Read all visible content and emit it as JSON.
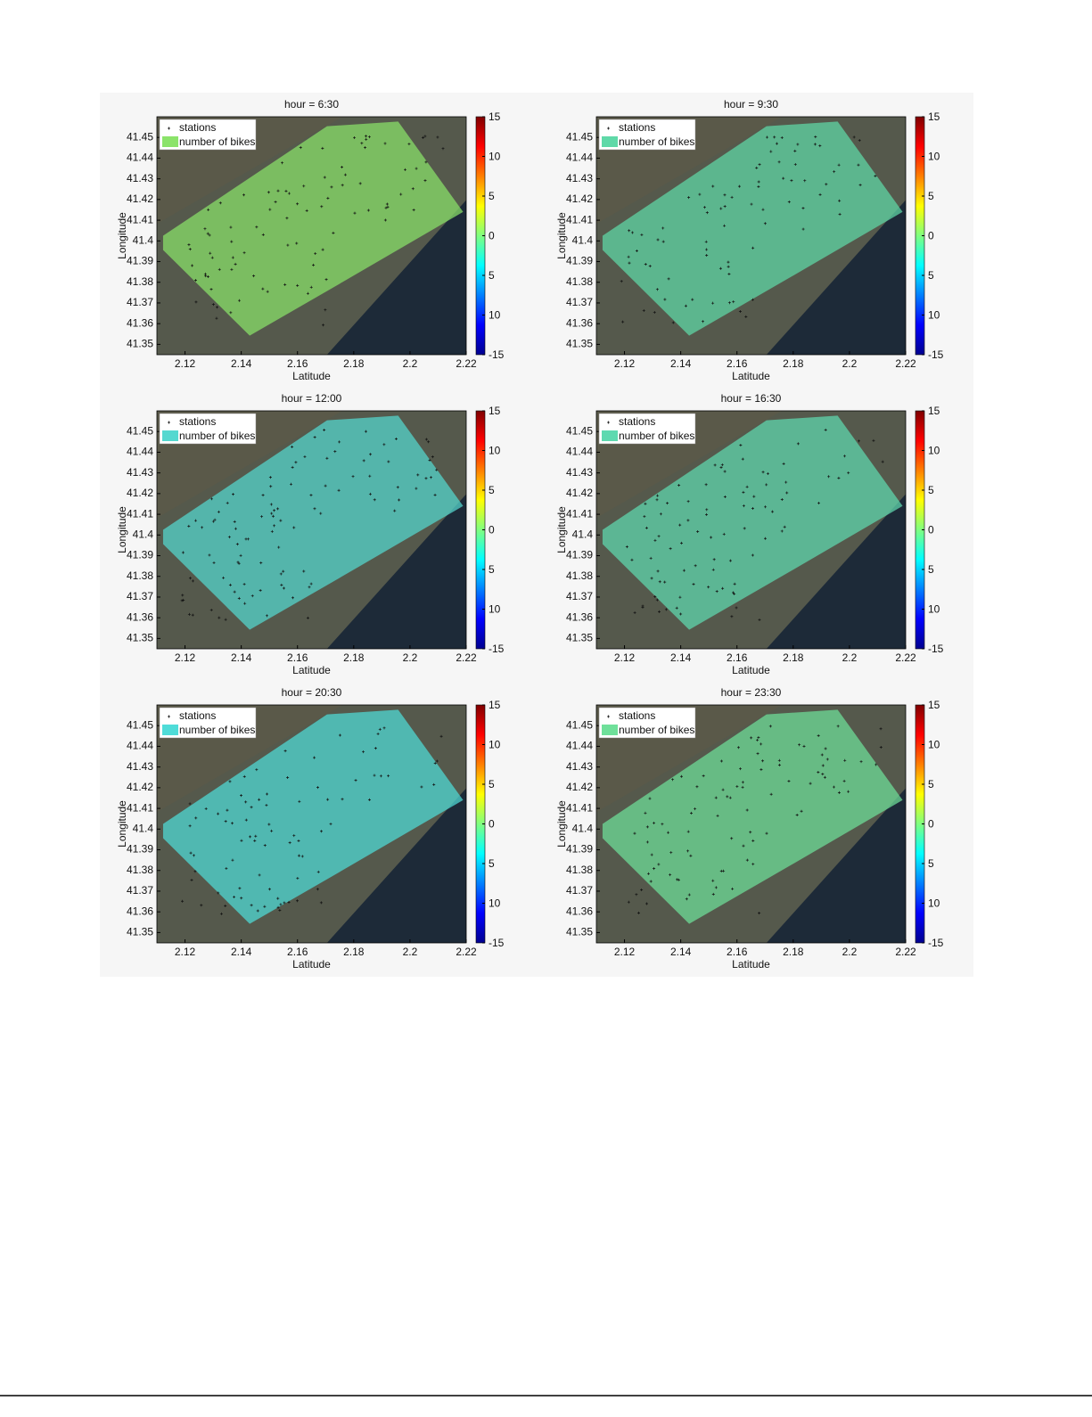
{
  "chart_data": [
    {
      "type": "heatmap",
      "title": "hour = 6:30",
      "xlabel": "Latitude",
      "ylabel": "Longitude",
      "xlim": [
        2.11,
        2.22
      ],
      "xticks": [
        2.12,
        2.14,
        2.16,
        2.18,
        2.2,
        2.22
      ],
      "ylim": [
        41.345,
        41.46
      ],
      "yticks": [
        41.35,
        41.36,
        41.37,
        41.38,
        41.39,
        41.4,
        41.41,
        41.42,
        41.43,
        41.44,
        41.45
      ],
      "clim": [
        -15,
        15
      ],
      "cticks": [
        -15,
        {
          "value": -10,
          "label": "10"
        },
        {
          "value": -5,
          "label": "5"
        },
        0,
        5,
        10,
        15
      ],
      "legend": [
        "stations",
        "number of bikes"
      ],
      "overlay_color": "#8be36a"
    },
    {
      "type": "heatmap",
      "title": "hour = 9:30",
      "xlabel": "Latitude",
      "ylabel": "Longitude",
      "xlim": [
        2.11,
        2.22
      ],
      "xticks": [
        2.12,
        2.14,
        2.16,
        2.18,
        2.2,
        2.22
      ],
      "ylim": [
        41.345,
        41.46
      ],
      "yticks": [
        41.35,
        41.36,
        41.37,
        41.38,
        41.39,
        41.4,
        41.41,
        41.42,
        41.43,
        41.44,
        41.45
      ],
      "clim": [
        -15,
        15
      ],
      "cticks": [
        -15,
        {
          "value": -10,
          "label": "10"
        },
        {
          "value": -5,
          "label": "5"
        },
        0,
        5,
        10,
        15
      ],
      "legend": [
        "stations",
        "number of bikes"
      ],
      "overlay_color": "#5fd9a8"
    },
    {
      "type": "heatmap",
      "title": "hour = 12:00",
      "xlabel": "Latitude",
      "ylabel": "Longitude",
      "xlim": [
        2.11,
        2.22
      ],
      "xticks": [
        2.12,
        2.14,
        2.16,
        2.18,
        2.2,
        2.22
      ],
      "ylim": [
        41.345,
        41.46
      ],
      "yticks": [
        41.35,
        41.36,
        41.37,
        41.38,
        41.39,
        41.4,
        41.41,
        41.42,
        41.43,
        41.44,
        41.45
      ],
      "clim": [
        -15,
        15
      ],
      "cticks": [
        -15,
        {
          "value": -10,
          "label": "10"
        },
        {
          "value": -5,
          "label": "5"
        },
        0,
        5,
        10,
        15
      ],
      "legend": [
        "stations",
        "number of bikes"
      ],
      "overlay_color": "#55d8d0"
    },
    {
      "type": "heatmap",
      "title": "hour = 16:30",
      "xlabel": "Latitude",
      "ylabel": "Longitude",
      "xlim": [
        2.11,
        2.22
      ],
      "xticks": [
        2.12,
        2.14,
        2.16,
        2.18,
        2.2,
        2.22
      ],
      "ylim": [
        41.345,
        41.46
      ],
      "yticks": [
        41.35,
        41.36,
        41.37,
        41.38,
        41.39,
        41.4,
        41.41,
        41.42,
        41.43,
        41.44,
        41.45
      ],
      "clim": [
        -15,
        15
      ],
      "cticks": [
        -15,
        {
          "value": -10,
          "label": "10"
        },
        {
          "value": -5,
          "label": "5"
        },
        0,
        5,
        10,
        15
      ],
      "legend": [
        "stations",
        "number of bikes"
      ],
      "overlay_color": "#5fd9b0"
    },
    {
      "type": "heatmap",
      "title": "hour = 20:30",
      "xlabel": "Latitude",
      "ylabel": "Longitude",
      "xlim": [
        2.11,
        2.22
      ],
      "xticks": [
        2.12,
        2.14,
        2.16,
        2.18,
        2.2,
        2.22
      ],
      "ylim": [
        41.345,
        41.46
      ],
      "yticks": [
        41.35,
        41.36,
        41.37,
        41.38,
        41.39,
        41.4,
        41.41,
        41.42,
        41.43,
        41.44,
        41.45
      ],
      "clim": [
        -15,
        15
      ],
      "cticks": [
        -15,
        {
          "value": -10,
          "label": "10"
        },
        {
          "value": -5,
          "label": "5"
        },
        0,
        5,
        10,
        15
      ],
      "legend": [
        "stations",
        "number of bikes"
      ],
      "overlay_color": "#4fdcd8"
    },
    {
      "type": "heatmap",
      "title": "hour = 23:30",
      "xlabel": "Latitude",
      "ylabel": "Longitude",
      "xlim": [
        2.11,
        2.22
      ],
      "xticks": [
        2.12,
        2.14,
        2.16,
        2.18,
        2.2,
        2.22
      ],
      "ylim": [
        41.345,
        41.46
      ],
      "yticks": [
        41.35,
        41.36,
        41.37,
        41.38,
        41.39,
        41.4,
        41.41,
        41.42,
        41.43,
        41.44,
        41.45
      ],
      "clim": [
        -15,
        15
      ],
      "cticks": [
        -15,
        {
          "value": -10,
          "label": "10"
        },
        {
          "value": -5,
          "label": "5"
        },
        0,
        5,
        10,
        15
      ],
      "legend": [
        "stations",
        "number of bikes"
      ],
      "overlay_color": "#6fe09a"
    }
  ]
}
